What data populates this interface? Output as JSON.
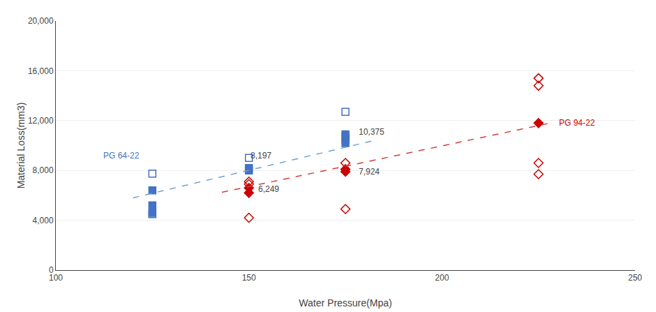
{
  "chart_data": {
    "type": "scatter",
    "xlabel": "Water Pressure(Mpa)",
    "ylabel": "Material Loss(mm3)",
    "xlim": [
      100,
      250
    ],
    "ylim": [
      0,
      20000
    ],
    "xticks": [
      100,
      150,
      200,
      250
    ],
    "yticks": [
      0,
      {
        "value": 4000,
        "label": "4,000"
      },
      {
        "value": 8000,
        "label": "8,000"
      },
      {
        "value": 12000,
        "label": "12,000"
      },
      {
        "value": 16000,
        "label": "16,000"
      },
      {
        "value": 20000,
        "label": "20,000"
      }
    ],
    "grid": "y",
    "series": [
      {
        "type": "scatter",
        "color": "#4472C4",
        "marker": "square-open",
        "x": [
          125,
          125,
          150,
          175,
          175
        ],
        "values": [
          7750,
          4500,
          9000,
          12700,
          10700
        ]
      },
      {
        "type": "scatter",
        "color": "#4472C4",
        "marker": "square",
        "x": [
          125,
          125,
          125,
          150,
          150,
          175,
          175,
          175
        ],
        "values": [
          6400,
          5200,
          4600,
          8200,
          8000,
          10900,
          10500,
          10200
        ]
      },
      {
        "type": "scatter",
        "color": "#CC0000",
        "marker": "diamond-open",
        "x": [
          150,
          150,
          150,
          175,
          175,
          225,
          225,
          225,
          225
        ],
        "values": [
          4200,
          6900,
          7100,
          4900,
          8600,
          8600,
          7700,
          15400,
          14800
        ]
      },
      {
        "type": "scatter",
        "color": "#CC0000",
        "marker": "diamond",
        "x": [
          150,
          150,
          175,
          175,
          225
        ],
        "values": [
          6600,
          6200,
          8100,
          7900,
          11800
        ]
      },
      {
        "type": "line",
        "color": "#70A0D0",
        "line_style": "dash",
        "x": [
          120,
          182
        ],
        "values": [
          5800,
          10375
        ]
      },
      {
        "type": "line",
        "color": "#CC4040",
        "line_style": "dash",
        "x": [
          143,
          228
        ],
        "values": [
          6249,
          11800
        ]
      }
    ],
    "annotations": [
      {
        "text": "PG 64-22",
        "x": 112,
        "y": 9200,
        "color": "#4472C4"
      },
      {
        "text": "PG 94-22",
        "x": 230,
        "y": 11800,
        "color": "#CC0000"
      },
      {
        "text": "8,197",
        "x": 150,
        "y": 8700
      },
      {
        "text": "10,375",
        "x": 178,
        "y": 10600
      },
      {
        "text": "6,249",
        "x": 152,
        "y": 6000
      },
      {
        "text": "7,924",
        "x": 178,
        "y": 7400
      }
    ]
  }
}
